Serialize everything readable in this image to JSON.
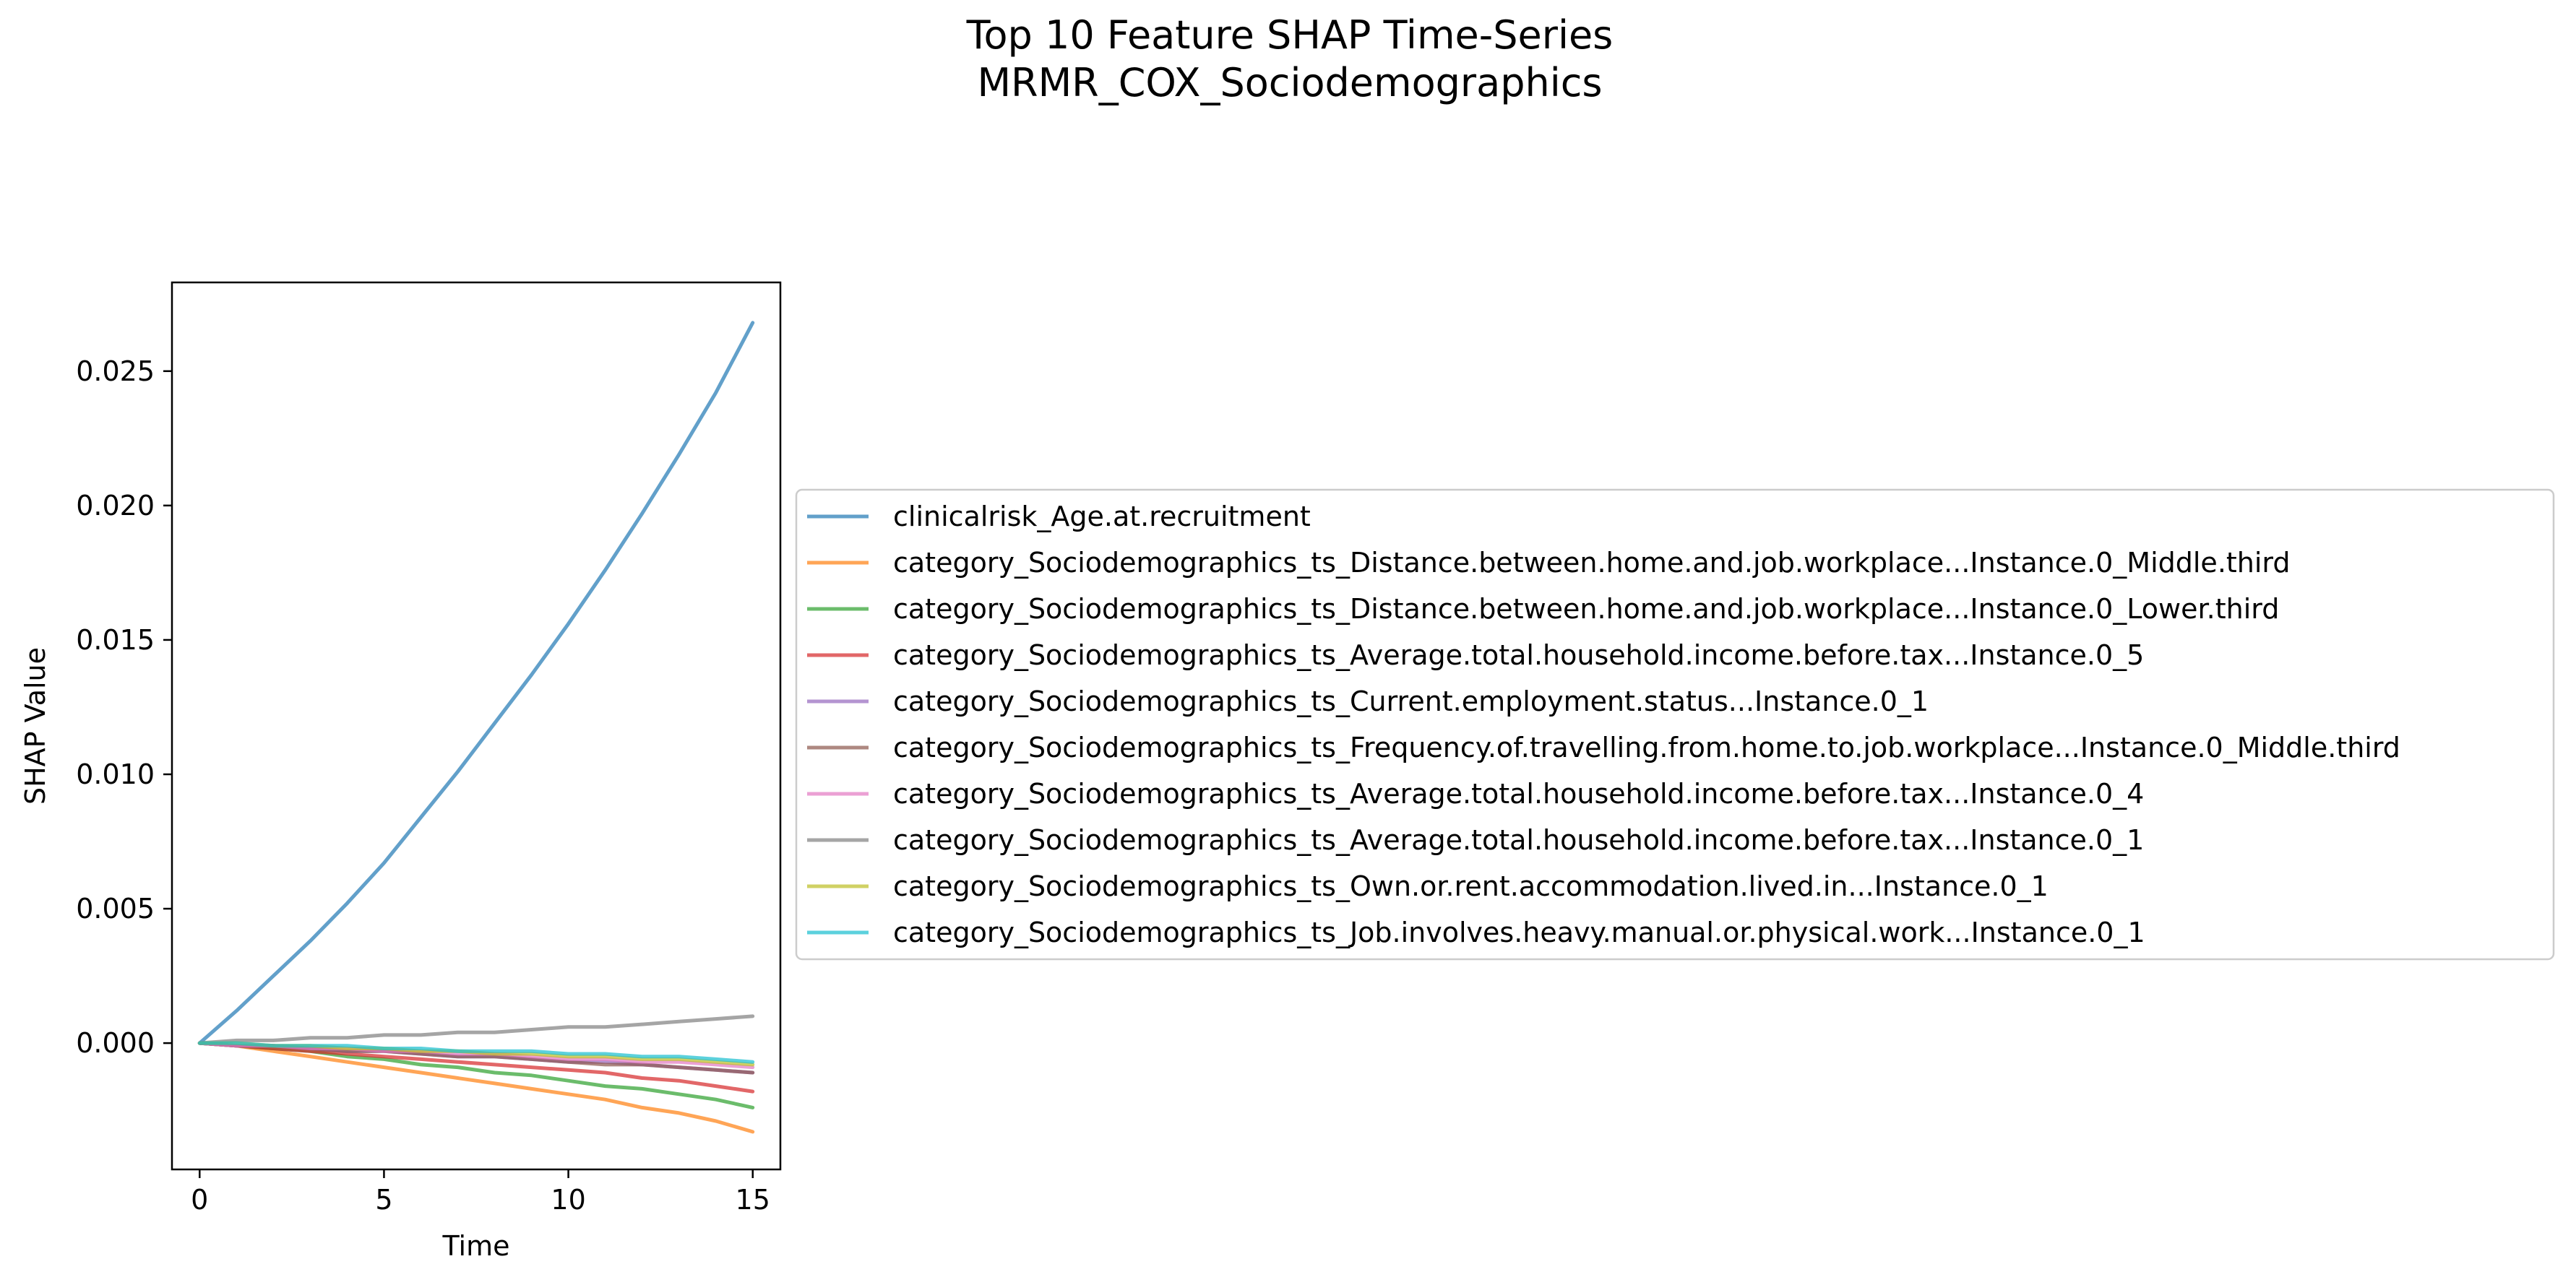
{
  "chart_data": {
    "type": "line",
    "title": "Top 10 Feature SHAP Time-Series",
    "subtitle": "MRMR_COX_Sociodemographics",
    "xlabel": "Time",
    "ylabel": "SHAP Value",
    "xlim": [
      -0.75,
      15.75
    ],
    "ylim": [
      -0.0047,
      0.0283
    ],
    "x_ticks": [
      0,
      5,
      10,
      15
    ],
    "y_ticks": [
      0.0,
      0.005,
      0.01,
      0.015,
      0.02,
      0.025
    ],
    "y_tick_labels": [
      "0.000",
      "0.005",
      "0.010",
      "0.015",
      "0.020",
      "0.025"
    ],
    "grid": false,
    "legend_position": "right of plot, vertically centered",
    "x": [
      0,
      1,
      2,
      3,
      4,
      5,
      6,
      7,
      8,
      9,
      10,
      11,
      12,
      13,
      14,
      15
    ],
    "series": [
      {
        "name": "clinicalrisk_Age.at.recruitment",
        "color": "#1f77b4",
        "values": [
          0.0,
          0.0012,
          0.0025,
          0.0038,
          0.0052,
          0.0067,
          0.0084,
          0.0101,
          0.0119,
          0.0137,
          0.0156,
          0.0176,
          0.0197,
          0.0219,
          0.0242,
          0.0268
        ]
      },
      {
        "name": "category_Sociodemographics_ts_Distance.between.home.and.job.workplace...Instance.0_Middle.third",
        "color": "#ff7f0e",
        "values": [
          0.0,
          -0.0001,
          -0.0003,
          -0.0005,
          -0.0007,
          -0.0009,
          -0.0011,
          -0.0013,
          -0.0015,
          -0.0017,
          -0.0019,
          -0.0021,
          -0.0024,
          -0.0026,
          -0.0029,
          -0.0033
        ]
      },
      {
        "name": "category_Sociodemographics_ts_Distance.between.home.and.job.workplace...Instance.0_Lower.third",
        "color": "#2ca02c",
        "values": [
          0.0,
          -0.0001,
          -0.0002,
          -0.0003,
          -0.0005,
          -0.0006,
          -0.0008,
          -0.0009,
          -0.0011,
          -0.0012,
          -0.0014,
          -0.0016,
          -0.0017,
          -0.0019,
          -0.0021,
          -0.0024
        ]
      },
      {
        "name": "category_Sociodemographics_ts_Average.total.household.income.before.tax...Instance.0_5",
        "color": "#d62728",
        "values": [
          0.0,
          -0.0001,
          -0.0002,
          -0.0003,
          -0.0004,
          -0.0005,
          -0.0006,
          -0.0007,
          -0.0008,
          -0.0009,
          -0.001,
          -0.0011,
          -0.0013,
          -0.0014,
          -0.0016,
          -0.0018
        ]
      },
      {
        "name": "category_Sociodemographics_ts_Current.employment.status...Instance.0_1",
        "color": "#9467bd",
        "values": [
          0.0,
          -0.0001,
          -0.0001,
          -0.0002,
          -0.0003,
          -0.0003,
          -0.0004,
          -0.0005,
          -0.0005,
          -0.0006,
          -0.0007,
          -0.0007,
          -0.0008,
          -0.0009,
          -0.001,
          -0.0011
        ]
      },
      {
        "name": "category_Sociodemographics_ts_Frequency.of.travelling.from.home.to.job.workplace...Instance.0_Middle.third",
        "color": "#8c564b",
        "values": [
          0.0,
          -0.0001,
          -0.0001,
          -0.0002,
          -0.0003,
          -0.0003,
          -0.0004,
          -0.0005,
          -0.0005,
          -0.0006,
          -0.0007,
          -0.0008,
          -0.0008,
          -0.0009,
          -0.001,
          -0.0011
        ]
      },
      {
        "name": "category_Sociodemographics_ts_Average.total.household.income.before.tax...Instance.0_4",
        "color": "#e377c2",
        "values": [
          0.0,
          -0.0001,
          -0.0001,
          -0.0002,
          -0.0002,
          -0.0003,
          -0.0003,
          -0.0004,
          -0.0004,
          -0.0005,
          -0.0006,
          -0.0006,
          -0.0007,
          -0.0007,
          -0.0008,
          -0.0009
        ]
      },
      {
        "name": "category_Sociodemographics_ts_Average.total.household.income.before.tax...Instance.0_1",
        "color": "#7f7f7f",
        "values": [
          0.0,
          0.0001,
          0.0001,
          0.0002,
          0.0002,
          0.0003,
          0.0003,
          0.0004,
          0.0004,
          0.0005,
          0.0006,
          0.0006,
          0.0007,
          0.0008,
          0.0009,
          0.001
        ]
      },
      {
        "name": "category_Sociodemographics_ts_Own.or.rent.accommodation.lived.in...Instance.0_1",
        "color": "#bcbd22",
        "values": [
          0.0,
          0.0,
          -0.0001,
          -0.0001,
          -0.0002,
          -0.0002,
          -0.0003,
          -0.0003,
          -0.0004,
          -0.0004,
          -0.0005,
          -0.0005,
          -0.0006,
          -0.0006,
          -0.0007,
          -0.0008
        ]
      },
      {
        "name": "category_Sociodemographics_ts_Job.involves.heavy.manual.or.physical.work...Instance.0_1",
        "color": "#17becf",
        "values": [
          0.0,
          0.0,
          -0.0001,
          -0.0001,
          -0.0001,
          -0.0002,
          -0.0002,
          -0.0003,
          -0.0003,
          -0.0003,
          -0.0004,
          -0.0004,
          -0.0005,
          -0.0005,
          -0.0006,
          -0.0007
        ]
      }
    ]
  }
}
